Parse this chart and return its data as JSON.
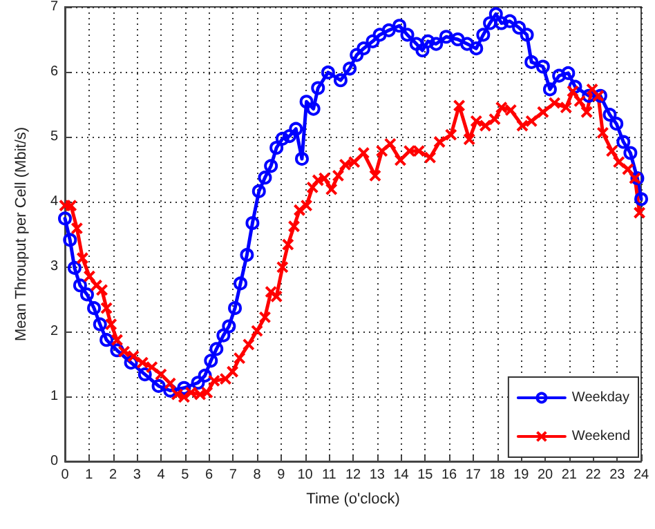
{
  "chart_data": {
    "type": "line",
    "xlabel": "Time (o'clock)",
    "ylabel": "Mean Throuput per Cell (Mbit/s)",
    "xlim": [
      0,
      24
    ],
    "xticks": [
      0,
      1,
      2,
      3,
      4,
      5,
      6,
      7,
      8,
      9,
      10,
      11,
      12,
      13,
      14,
      15,
      16,
      17,
      18,
      19,
      20,
      21,
      22,
      23,
      24
    ],
    "ylim": [
      0,
      7
    ],
    "yticks": [
      0,
      1,
      2,
      3,
      4,
      5,
      6,
      7
    ],
    "grid": true,
    "legend": "bottom right",
    "series": [
      {
        "name": "Weekday",
        "color": "#0000ff",
        "marker": "circle",
        "x": [
          0,
          0.21,
          0.4,
          0.63,
          0.92,
          1.21,
          1.46,
          1.73,
          2.17,
          2.75,
          3.33,
          3.9,
          4.38,
          4.96,
          5.54,
          5.83,
          6.08,
          6.31,
          6.6,
          6.83,
          7.08,
          7.31,
          7.58,
          7.81,
          8.08,
          8.33,
          8.58,
          8.81,
          9.06,
          9.35,
          9.62,
          9.87,
          10.06,
          10.35,
          10.54,
          10.96,
          11.48,
          11.86,
          12.15,
          12.44,
          12.82,
          13.11,
          13.49,
          13.93,
          14.26,
          14.64,
          14.89,
          15.12,
          15.46,
          15.88,
          16.36,
          16.75,
          17.13,
          17.42,
          17.7,
          17.95,
          18.18,
          18.53,
          18.91,
          19.24,
          19.43,
          19.91,
          20.2,
          20.58,
          20.96,
          21.25,
          21.82,
          22.3,
          22.69,
          22.97,
          23.26,
          23.55,
          23.84,
          24
        ],
        "values": [
          3.74,
          3.41,
          2.98,
          2.71,
          2.57,
          2.36,
          2.11,
          1.87,
          1.71,
          1.52,
          1.34,
          1.16,
          1.09,
          1.13,
          1.21,
          1.32,
          1.55,
          1.73,
          1.94,
          2.08,
          2.36,
          2.74,
          3.18,
          3.67,
          4.16,
          4.37,
          4.55,
          4.83,
          4.97,
          5.01,
          5.12,
          4.66,
          5.54,
          5.43,
          5.75,
          5.99,
          5.87,
          6.05,
          6.26,
          6.36,
          6.47,
          6.57,
          6.64,
          6.71,
          6.57,
          6.43,
          6.33,
          6.47,
          6.43,
          6.54,
          6.5,
          6.43,
          6.36,
          6.57,
          6.75,
          6.89,
          6.75,
          6.78,
          6.68,
          6.57,
          6.15,
          6.08,
          5.73,
          5.94,
          5.98,
          5.77,
          5.63,
          5.63,
          5.34,
          5.2,
          4.92,
          4.75,
          4.36,
          4.04
        ]
      },
      {
        "name": "Weekend",
        "color": "#ff0000",
        "marker": "cross",
        "x": [
          0,
          0.25,
          0.5,
          0.73,
          1.02,
          1.31,
          1.54,
          1.73,
          1.92,
          2.17,
          2.46,
          2.85,
          3.23,
          3.62,
          4.0,
          4.38,
          4.67,
          4.96,
          5.25,
          5.63,
          5.92,
          6.21,
          6.69,
          6.98,
          7.27,
          7.65,
          8.0,
          8.33,
          8.58,
          8.81,
          9.06,
          9.29,
          9.54,
          9.77,
          10.06,
          10.31,
          10.54,
          10.81,
          11.1,
          11.38,
          11.67,
          12.05,
          12.44,
          12.92,
          13.2,
          13.55,
          13.97,
          14.35,
          14.74,
          15.21,
          15.6,
          16.08,
          16.42,
          16.84,
          17.13,
          17.51,
          17.9,
          18.18,
          18.57,
          19.05,
          19.43,
          19.91,
          20.39,
          20.87,
          21.15,
          21.44,
          21.73,
          21.96,
          22.21,
          22.4,
          22.78,
          23.07,
          23.45,
          23.74,
          23.93
        ],
        "values": [
          3.94,
          3.94,
          3.59,
          3.13,
          2.85,
          2.71,
          2.64,
          2.36,
          2.11,
          1.87,
          1.69,
          1.62,
          1.52,
          1.45,
          1.34,
          1.2,
          1.03,
          0.99,
          1.06,
          1.03,
          1.06,
          1.24,
          1.27,
          1.38,
          1.59,
          1.8,
          2.01,
          2.22,
          2.61,
          2.54,
          2.99,
          3.34,
          3.62,
          3.87,
          3.94,
          4.22,
          4.33,
          4.36,
          4.19,
          4.4,
          4.57,
          4.61,
          4.75,
          4.4,
          4.78,
          4.89,
          4.64,
          4.78,
          4.78,
          4.68,
          4.92,
          5.03,
          5.48,
          4.96,
          5.24,
          5.17,
          5.27,
          5.45,
          5.41,
          5.17,
          5.24,
          5.38,
          5.52,
          5.45,
          5.7,
          5.55,
          5.38,
          5.73,
          5.63,
          5.06,
          4.78,
          4.61,
          4.5,
          4.36,
          3.83
        ]
      }
    ]
  }
}
